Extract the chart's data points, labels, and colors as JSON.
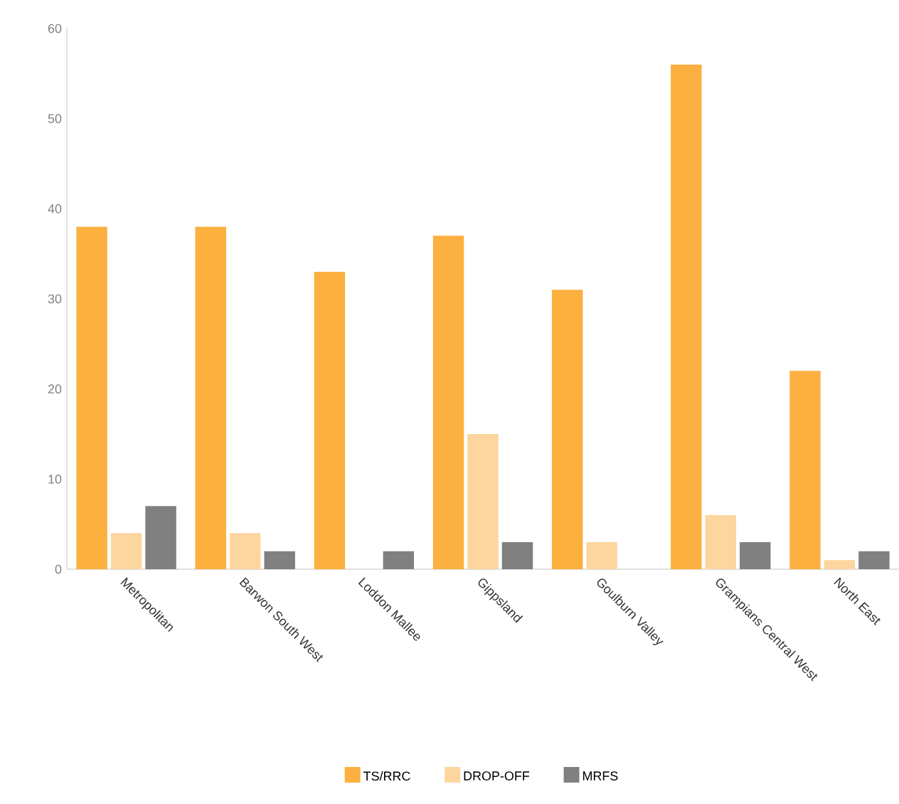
{
  "chart_data": {
    "type": "bar",
    "categories": [
      "Metropolitan",
      "Barwon South West",
      "Loddon Mallee",
      "Gippsland",
      "Goulburn Valley",
      "Grampians Central West",
      "North East"
    ],
    "series": [
      {
        "name": "TS/RRC",
        "color": "#fbb040",
        "values": [
          38,
          38,
          33,
          37,
          31,
          56,
          22
        ]
      },
      {
        "name": "DROP-OFF",
        "color": "#fdd59f",
        "values": [
          4,
          4,
          0,
          15,
          3,
          6,
          1
        ]
      },
      {
        "name": "MRFS",
        "color": "#808080",
        "values": [
          7,
          2,
          2,
          3,
          0,
          3,
          2
        ]
      }
    ],
    "ylim": [
      0,
      60
    ],
    "yticks": [
      0,
      10,
      20,
      30,
      40,
      50,
      60
    ],
    "grid": false,
    "legend": "bottom"
  }
}
